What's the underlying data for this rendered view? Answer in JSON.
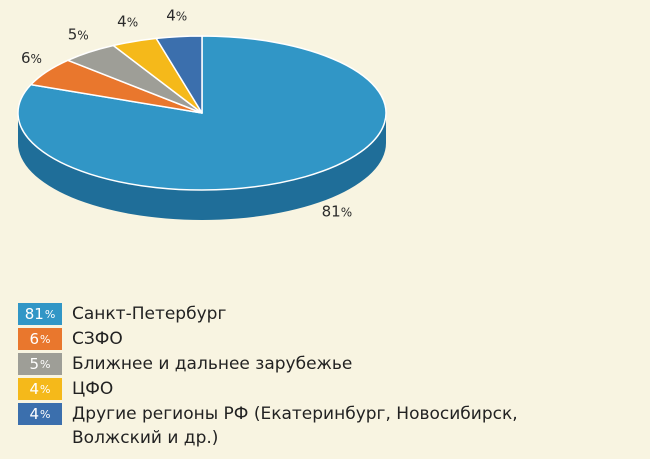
{
  "chart_data": {
    "type": "pie",
    "style": "3d",
    "slices": [
      {
        "label": "Санкт-Петербург",
        "value": 81,
        "value_text": "81",
        "color": "#3196c6",
        "side_color": "#1f6e99"
      },
      {
        "label": "СЗФО",
        "value": 6,
        "value_text": "6",
        "color": "#e9772d",
        "side_color": "#b25515"
      },
      {
        "label": "Ближнее и дальнее зарубежье",
        "value": 5,
        "value_text": "5",
        "color": "#9e9e97",
        "side_color": "#74746d"
      },
      {
        "label": "ЦФО",
        "value": 4,
        "value_text": "4",
        "color": "#f5b91a",
        "side_color": "#bf8a00"
      },
      {
        "label": "Другие регионы РФ (Екатеринбург, Новосибирск, Волжский и др.)",
        "value": 4,
        "value_text": "4",
        "color": "#3b6fad",
        "side_color": "#244b7e"
      }
    ],
    "percent_sign": "%",
    "legend_position": "bottom-left"
  }
}
